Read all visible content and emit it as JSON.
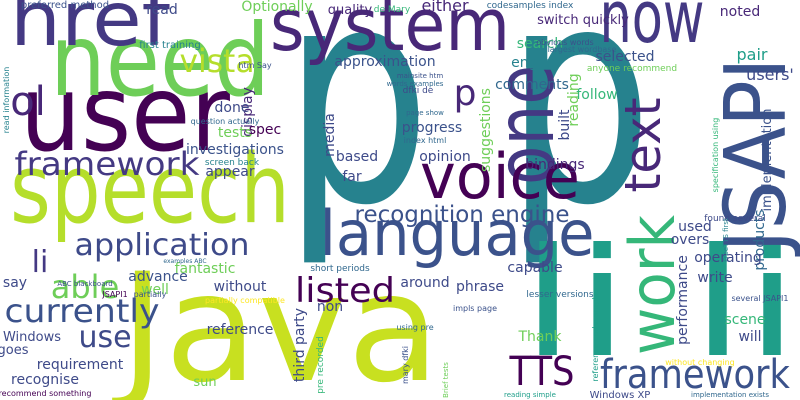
{
  "words": [
    "p p",
    "Java",
    "li li",
    "speech",
    "user",
    "need",
    "href",
    "system",
    "now",
    "one",
    "JSAPI",
    "language",
    "voice",
    "work",
    "text",
    "framework",
    "framework",
    "application",
    "li",
    "able",
    "currently",
    "use",
    "listed",
    "TTS",
    "vista",
    "ol",
    "p",
    "recognition engine",
    "preferred method",
    "read",
    "Optionally",
    "quality",
    "de Mary",
    "either",
    "codesamples index",
    "switch quickly",
    "noted",
    "search",
    "largest wordbase",
    "obvious words",
    "pair",
    "users'",
    "engine",
    "selected",
    "anyone recommend",
    "first training",
    "htm Say",
    "approximation",
    "words examples",
    "mainsite htm",
    "dfki de",
    "comments",
    "reading",
    "follow",
    "suggestions",
    "built",
    "display",
    "done",
    "question actually",
    "tests",
    "spec",
    "investigations",
    "screen back",
    "appear",
    "media",
    "page show",
    "index html",
    "progress",
    "opinion",
    "based",
    "far",
    "bindings",
    "read information",
    "specification using",
    "implementation",
    "products",
    "found several",
    "FreeTTS first",
    "used",
    "overs",
    "operating",
    "write",
    "performance",
    "scene",
    "will",
    "several JSAPI1",
    "without changing",
    "implementation exists",
    "fantastic",
    "advance",
    "well",
    "say",
    "without",
    "ABC blackboard",
    "examples ABC",
    "JSAPI1",
    "partially",
    "partially compatible",
    "Windows",
    "goes",
    "requirement",
    "recognise",
    "recommend something",
    "sun",
    "reference",
    "third party",
    "pre recorded",
    "non",
    "short periods",
    "around",
    "phrase",
    "capable",
    "lesser versions",
    "impls page",
    "using pre",
    "mary dfki",
    "Brief tests",
    "Thank",
    "reference codesamples",
    "reading simple",
    "Windows XP"
  ]
}
